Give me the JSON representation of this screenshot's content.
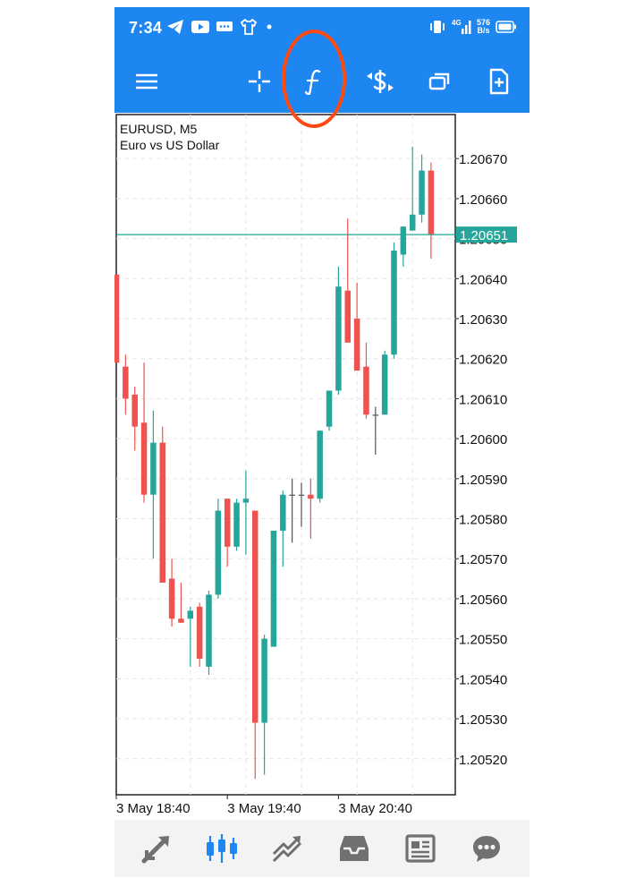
{
  "status_bar": {
    "time": "7:34",
    "network_speed_value": "576",
    "network_speed_unit": "B/s",
    "signal_label": "4G"
  },
  "toolbar": {
    "icons": [
      "menu-icon",
      "crosshair-icon",
      "indicators-icon",
      "trade-icon",
      "windows-icon",
      "objects-icon"
    ]
  },
  "chart": {
    "symbol": "EURUSD, M5",
    "description": "Euro vs US Dollar",
    "current_price": "1.20651",
    "colors": {
      "bull": "#26a69a",
      "bear": "#ef5350",
      "price_line": "#26a69a",
      "grid": "#e6e6e6"
    }
  },
  "chart_data": {
    "type": "candlestick",
    "title": "EURUSD, M5",
    "subtitle": "Euro vs US Dollar",
    "ylim": [
      1.20511,
      1.20681
    ],
    "y_ticks": [
      "1.20670",
      "1.20660",
      "1.20650",
      "1.20640",
      "1.20630",
      "1.20620",
      "1.20610",
      "1.20600",
      "1.20590",
      "1.20580",
      "1.20570",
      "1.20560",
      "1.20550",
      "1.20540",
      "1.20530",
      "1.20520"
    ],
    "x_ticks": [
      "3 May 18:40",
      "3 May 19:40",
      "3 May 20:40"
    ],
    "last_price": 1.20651,
    "candles": [
      {
        "o": 1.20641,
        "h": 1.20641,
        "l": 1.20619,
        "c": 1.20619
      },
      {
        "o": 1.20618,
        "h": 1.20621,
        "l": 1.20606,
        "c": 1.2061
      },
      {
        "o": 1.20611,
        "h": 1.20613,
        "l": 1.20597,
        "c": 1.20603
      },
      {
        "o": 1.20604,
        "h": 1.20619,
        "l": 1.20584,
        "c": 1.20586
      },
      {
        "o": 1.20586,
        "h": 1.20607,
        "l": 1.2057,
        "c": 1.20599
      },
      {
        "o": 1.20599,
        "h": 1.20603,
        "l": 1.20564,
        "c": 1.20564
      },
      {
        "o": 1.20565,
        "h": 1.2057,
        "l": 1.20553,
        "c": 1.20555
      },
      {
        "o": 1.20555,
        "h": 1.20564,
        "l": 1.20554,
        "c": 1.20554
      },
      {
        "o": 1.20555,
        "h": 1.20558,
        "l": 1.20543,
        "c": 1.20557
      },
      {
        "o": 1.20558,
        "h": 1.20559,
        "l": 1.20543,
        "c": 1.20545
      },
      {
        "o": 1.20543,
        "h": 1.20562,
        "l": 1.20541,
        "c": 1.20561
      },
      {
        "o": 1.20561,
        "h": 1.20585,
        "l": 1.2056,
        "c": 1.20582
      },
      {
        "o": 1.20585,
        "h": 1.20585,
        "l": 1.20568,
        "c": 1.20573
      },
      {
        "o": 1.20573,
        "h": 1.20585,
        "l": 1.20572,
        "c": 1.20584
      },
      {
        "o": 1.20584,
        "h": 1.20592,
        "l": 1.20571,
        "c": 1.20585
      },
      {
        "o": 1.20582,
        "h": 1.20582,
        "l": 1.20515,
        "c": 1.20529
      },
      {
        "o": 1.20529,
        "h": 1.20551,
        "l": 1.20516,
        "c": 1.2055
      },
      {
        "o": 1.20548,
        "h": 1.20577,
        "l": 1.20548,
        "c": 1.20577
      },
      {
        "o": 1.20577,
        "h": 1.20587,
        "l": 1.20568,
        "c": 1.20586
      },
      {
        "o": 1.20586,
        "h": 1.2059,
        "l": 1.20574,
        "c": 1.20586
      },
      {
        "o": 1.20586,
        "h": 1.20589,
        "l": 1.20578,
        "c": 1.20586
      },
      {
        "o": 1.20586,
        "h": 1.2059,
        "l": 1.20575,
        "c": 1.20585
      },
      {
        "o": 1.20585,
        "h": 1.20602,
        "l": 1.20584,
        "c": 1.20602
      },
      {
        "o": 1.20603,
        "h": 1.20612,
        "l": 1.20602,
        "c": 1.20612
      },
      {
        "o": 1.20612,
        "h": 1.20643,
        "l": 1.20611,
        "c": 1.20638
      },
      {
        "o": 1.20637,
        "h": 1.20655,
        "l": 1.20625,
        "c": 1.20624
      },
      {
        "o": 1.2063,
        "h": 1.20639,
        "l": 1.20617,
        "c": 1.20617
      },
      {
        "o": 1.20618,
        "h": 1.20624,
        "l": 1.20605,
        "c": 1.20606
      },
      {
        "o": 1.20606,
        "h": 1.20608,
        "l": 1.20596,
        "c": 1.20606
      },
      {
        "o": 1.20606,
        "h": 1.20622,
        "l": 1.20606,
        "c": 1.20621
      },
      {
        "o": 1.20621,
        "h": 1.20649,
        "l": 1.2062,
        "c": 1.20647
      },
      {
        "o": 1.20646,
        "h": 1.20653,
        "l": 1.20643,
        "c": 1.20653
      },
      {
        "o": 1.20652,
        "h": 1.20673,
        "l": 1.20652,
        "c": 1.20656
      },
      {
        "o": 1.20656,
        "h": 1.20671,
        "l": 1.20654,
        "c": 1.20667
      },
      {
        "o": 1.20667,
        "h": 1.20669,
        "l": 1.20645,
        "c": 1.20651
      }
    ]
  },
  "bottom_nav": {
    "items": [
      "quotes-icon",
      "chart-icon",
      "trade-icon",
      "history-icon",
      "news-icon",
      "messages-icon"
    ],
    "active": "chart-icon"
  }
}
